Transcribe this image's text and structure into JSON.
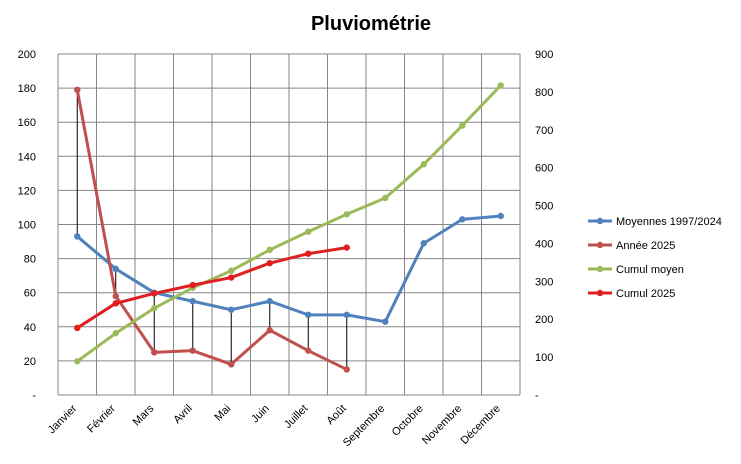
{
  "chart_data": {
    "type": "line",
    "title": "Pluviométrie",
    "categories": [
      "Janvier",
      "Février",
      "Mars",
      "Avril",
      "Mai",
      "Juin",
      "Juillet",
      "Août",
      "Septembre",
      "Octobre",
      "Novembre",
      "Décembre"
    ],
    "y_left": {
      "ticks": [
        "200",
        "180",
        "160",
        "140",
        "120",
        "100",
        "80",
        "60",
        "40",
        "20",
        "-"
      ],
      "ylim": [
        0,
        200
      ]
    },
    "y_right": {
      "ticks": [
        "900",
        "800",
        "700",
        "600",
        "500",
        "400",
        "300",
        "200",
        "100",
        "-"
      ],
      "ylim": [
        0,
        900
      ]
    },
    "grid": true,
    "legend_position": "right",
    "series": [
      {
        "name": "Moyennes 1997/2024",
        "axis": "left",
        "color": "#4f81bd",
        "values": [
          93,
          74,
          60,
          55,
          50,
          55,
          47,
          47,
          43,
          89,
          103,
          105
        ]
      },
      {
        "name": "Année 2025",
        "axis": "left",
        "color": "#c0504d",
        "values": [
          179,
          58,
          25,
          26,
          18,
          38,
          26,
          15,
          null,
          null,
          null,
          null
        ]
      },
      {
        "name": "Cumul moyen",
        "axis": "right",
        "color": "#9bbb59",
        "values": [
          89,
          163,
          229,
          283,
          328,
          383,
          431,
          477,
          520,
          609,
          711,
          817
        ]
      },
      {
        "name": "Cumul 2025",
        "axis": "right",
        "color": "#e02020",
        "values": [
          177,
          242,
          268,
          290,
          310,
          348,
          373,
          389,
          null,
          null,
          null,
          null
        ]
      }
    ]
  }
}
